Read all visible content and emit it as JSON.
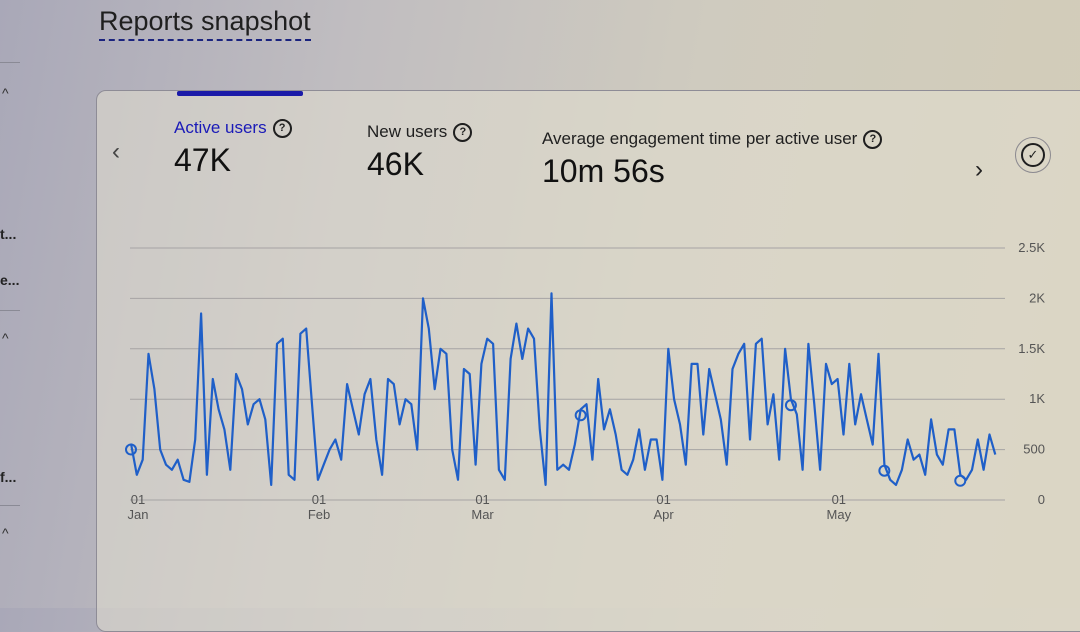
{
  "page": {
    "title": "Reports snapshot"
  },
  "left_rail": {
    "items": [
      "t...",
      "e...",
      "f..."
    ]
  },
  "card": {
    "metrics": [
      {
        "label": "Active users",
        "value": "47K",
        "selected": true
      },
      {
        "label": "New users",
        "value": "46K",
        "selected": false
      },
      {
        "label": "Average engagement time per active user",
        "value": "10m 56s",
        "selected": false
      }
    ],
    "help_glyph": "?",
    "prev_glyph": "‹",
    "next_glyph": "›",
    "check_glyph": "✓"
  },
  "colors": {
    "accent": "#1a1ab8",
    "line": "#1f5fc8"
  },
  "chart_data": {
    "type": "line",
    "title": "Active users",
    "xlabel": "",
    "ylabel": "",
    "ylim": [
      0,
      2500
    ],
    "y_ticks": [
      {
        "value": 0,
        "label": "0"
      },
      {
        "value": 500,
        "label": "500"
      },
      {
        "value": 1000,
        "label": "1K"
      },
      {
        "value": 1500,
        "label": "1.5K"
      },
      {
        "value": 2000,
        "label": "2K"
      },
      {
        "value": 2500,
        "label": "2.5K"
      }
    ],
    "x_ticks": [
      {
        "day": 0,
        "day_label": "01",
        "month_label": "Jan"
      },
      {
        "day": 31,
        "day_label": "01",
        "month_label": "Feb"
      },
      {
        "day": 59,
        "day_label": "01",
        "month_label": "Mar"
      },
      {
        "day": 90,
        "day_label": "01",
        "month_label": "Apr"
      },
      {
        "day": 120,
        "day_label": "01",
        "month_label": "May"
      }
    ],
    "grid": true,
    "series": [
      {
        "name": "Active users",
        "x_start_day": 0,
        "values": [
          560,
          250,
          400,
          1450,
          1100,
          500,
          350,
          300,
          400,
          200,
          180,
          600,
          1850,
          250,
          1200,
          900,
          700,
          300,
          1250,
          1100,
          750,
          950,
          1000,
          800,
          150,
          1550,
          1600,
          250,
          200,
          1650,
          1700,
          950,
          200,
          350,
          500,
          600,
          400,
          1150,
          900,
          650,
          1050,
          1200,
          600,
          250,
          1200,
          1150,
          750,
          1000,
          950,
          500,
          2000,
          1700,
          1100,
          1500,
          1450,
          500,
          200,
          1300,
          1250,
          350,
          1350,
          1600,
          1550,
          300,
          200,
          1400,
          1750,
          1400,
          1700,
          1600,
          700,
          150,
          2050,
          300,
          350,
          300,
          550,
          900,
          950,
          400,
          1200,
          700,
          900,
          650,
          300,
          250,
          400,
          700,
          300,
          600,
          600,
          200,
          1500,
          1000,
          750,
          350,
          1350,
          1350,
          650,
          1300,
          1050,
          800,
          350,
          1300,
          1450,
          1550,
          600,
          1550,
          1600,
          750,
          1050,
          400,
          1500,
          1000,
          850,
          300,
          1550,
          950,
          300,
          1350,
          1150,
          1200,
          650,
          1350,
          750,
          1050,
          800,
          550,
          1450,
          350,
          200,
          150,
          300,
          600,
          400,
          450,
          250,
          800,
          450,
          350,
          700,
          700,
          250,
          200,
          300,
          600,
          300,
          650,
          450
        ]
      }
    ],
    "hollow_markers_days": [
      0,
      77,
      113,
      129,
      142
    ]
  }
}
